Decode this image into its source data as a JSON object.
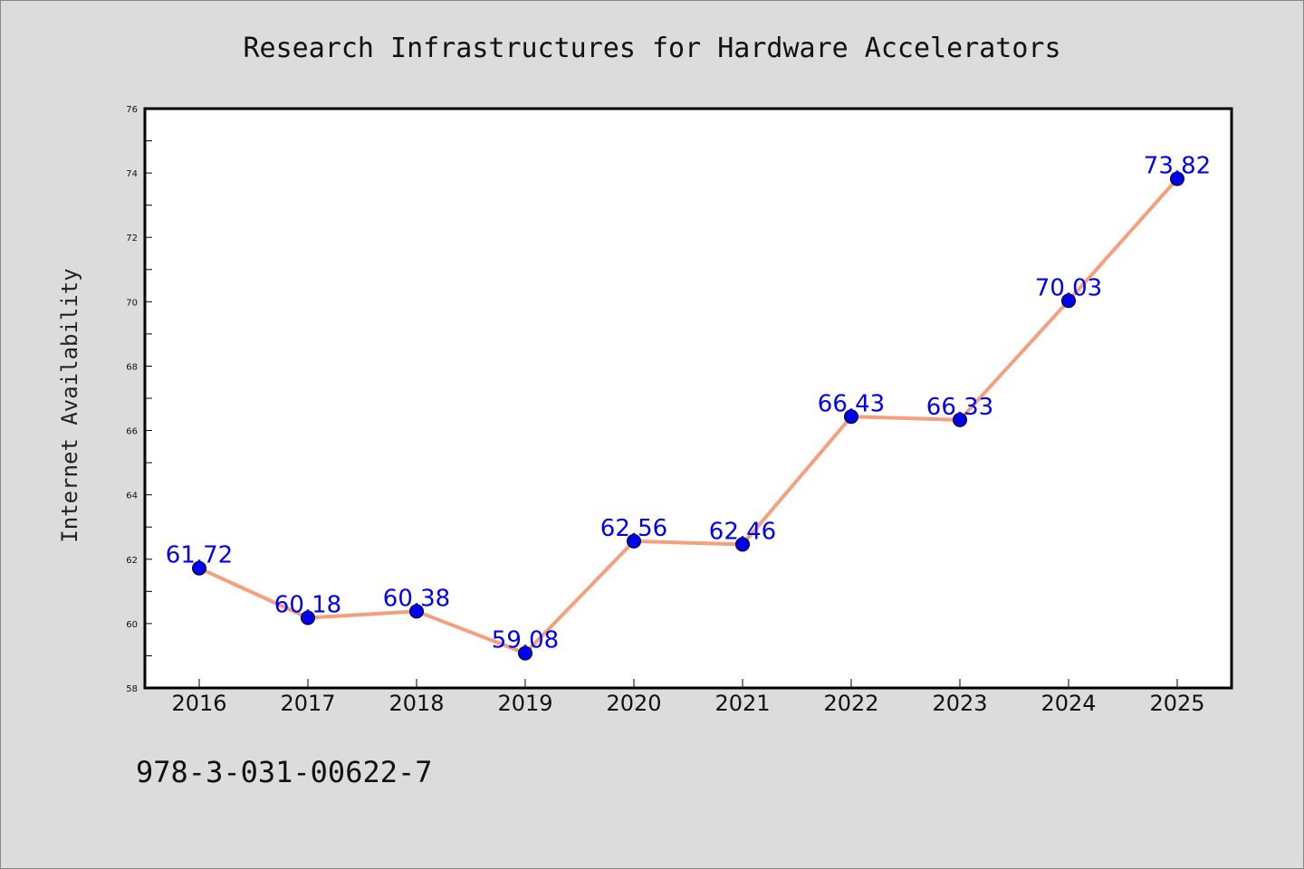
{
  "chart_data": {
    "type": "line",
    "title": "Research Infrastructures for Hardware Accelerators",
    "xlabel": "",
    "ylabel": "Internet Availability",
    "categories": [
      "2016",
      "2017",
      "2018",
      "2019",
      "2020",
      "2021",
      "2022",
      "2023",
      "2024",
      "2025"
    ],
    "series": [
      {
        "values": [
          61.72,
          60.18,
          60.38,
          59.08,
          62.56,
          62.46,
          66.43,
          66.33,
          70.03,
          73.82
        ]
      }
    ],
    "data_labels": [
      "61.72",
      "60.18",
      "60.38",
      "59.08",
      "62.56",
      "62.46",
      "66.43",
      "66.33",
      "70.03",
      "73.82"
    ],
    "ylim": [
      58,
      76
    ],
    "yticks": [
      "58",
      "60",
      "62",
      "64",
      "66",
      "68",
      "70",
      "72",
      "74",
      "76"
    ],
    "grid": false,
    "line_color": "#f4a07e",
    "marker_color": "#0000ee",
    "label_color": "#0000ee"
  },
  "footer": {
    "isbn": "978-3-031-00622-7"
  }
}
